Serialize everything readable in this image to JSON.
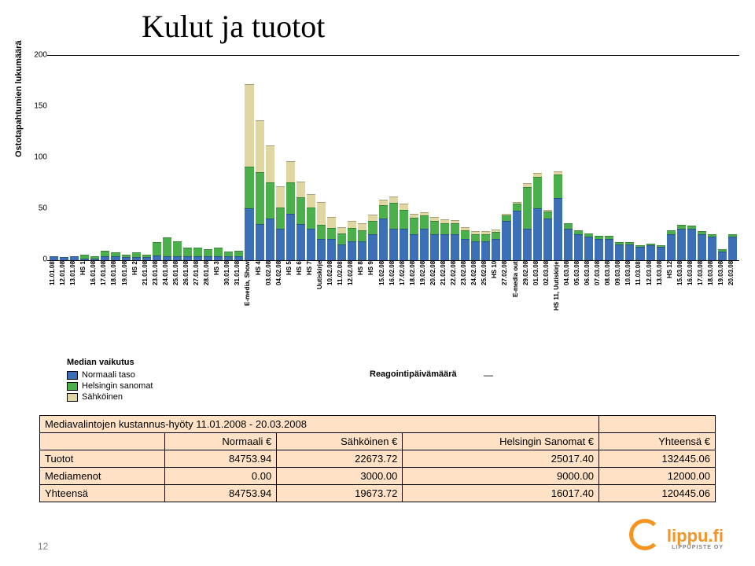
{
  "title": "Kulut ja tuotot",
  "y_axis": {
    "label": "Ostotapahtumien lukumäärä",
    "ylim": [
      0,
      200
    ],
    "ticks": [
      0,
      50,
      100,
      150,
      200
    ]
  },
  "colors": {
    "normaali": "#3b6fb6",
    "helsingin": "#4bb04b",
    "sahkoinen": "#e0d6a2",
    "border": "#000000",
    "table_bg": "#ffe2c6",
    "logo": "#f79321"
  },
  "legend": {
    "header": "Median vaikutus",
    "items": [
      {
        "label": "Normaali taso",
        "color": "#3b6fb6"
      },
      {
        "label": "Helsingin sanomat",
        "color": "#4bb04b"
      },
      {
        "label": "Sähköinen",
        "color": "#e0d6a2"
      }
    ],
    "mid_label": "Reagointipäivämäärä",
    "dash": "—"
  },
  "bars": [
    {
      "label": "11.01.08",
      "normaali": 3,
      "helsingin": 0,
      "sahkoinen": 0
    },
    {
      "label": "12.01.08",
      "normaali": 2,
      "helsingin": 0,
      "sahkoinen": 0
    },
    {
      "label": "13.01.08",
      "normaali": 3,
      "helsingin": 0,
      "sahkoinen": 0
    },
    {
      "label": "HS 1",
      "normaali": 1,
      "helsingin": 3,
      "sahkoinen": 0
    },
    {
      "label": "16.01.08",
      "normaali": 1,
      "helsingin": 1,
      "sahkoinen": 0
    },
    {
      "label": "17.01.08",
      "normaali": 3,
      "helsingin": 5,
      "sahkoinen": 0
    },
    {
      "label": "18.01.08",
      "normaali": 3,
      "helsingin": 3,
      "sahkoinen": 0
    },
    {
      "label": "19.01.08",
      "normaali": 2,
      "helsingin": 2,
      "sahkoinen": 0
    },
    {
      "label": "HS 2",
      "normaali": 2,
      "helsingin": 4,
      "sahkoinen": 0
    },
    {
      "label": "21.01.08",
      "normaali": 2,
      "helsingin": 2,
      "sahkoinen": 0
    },
    {
      "label": "23.01.08",
      "normaali": 4,
      "helsingin": 12,
      "sahkoinen": 0
    },
    {
      "label": "24.01.08",
      "normaali": 3,
      "helsingin": 18,
      "sahkoinen": 0
    },
    {
      "label": "25.01.08",
      "normaali": 3,
      "helsingin": 14,
      "sahkoinen": 0
    },
    {
      "label": "26.01.08",
      "normaali": 3,
      "helsingin": 8,
      "sahkoinen": 0
    },
    {
      "label": "27.01.08",
      "normaali": 3,
      "helsingin": 8,
      "sahkoinen": 0
    },
    {
      "label": "28.01.08",
      "normaali": 3,
      "helsingin": 6,
      "sahkoinen": 0
    },
    {
      "label": "HS 3",
      "normaali": 3,
      "helsingin": 8,
      "sahkoinen": 0
    },
    {
      "label": "30.01.08",
      "normaali": 3,
      "helsingin": 4,
      "sahkoinen": 0
    },
    {
      "label": "31.01.08",
      "normaali": 3,
      "helsingin": 5,
      "sahkoinen": 0
    },
    {
      "label": "E-media, Show",
      "normaali": 50,
      "helsingin": 40,
      "sahkoinen": 80
    },
    {
      "label": "HS 4",
      "normaali": 35,
      "helsingin": 50,
      "sahkoinen": 50
    },
    {
      "label": "03.02.08",
      "normaali": 40,
      "helsingin": 35,
      "sahkoinen": 35
    },
    {
      "label": "04.02.08",
      "normaali": 30,
      "helsingin": 20,
      "sahkoinen": 20
    },
    {
      "label": "HS 5",
      "normaali": 45,
      "helsingin": 30,
      "sahkoinen": 20
    },
    {
      "label": "HS 6",
      "normaali": 35,
      "helsingin": 25,
      "sahkoinen": 15
    },
    {
      "label": "HS 7",
      "normaali": 30,
      "helsingin": 20,
      "sahkoinen": 12
    },
    {
      "label": "Uutiskirje",
      "normaali": 20,
      "helsingin": 13,
      "sahkoinen": 22
    },
    {
      "label": "10.02.08",
      "normaali": 20,
      "helsingin": 10,
      "sahkoinen": 10
    },
    {
      "label": "11.02.08",
      "normaali": 15,
      "helsingin": 10,
      "sahkoinen": 5
    },
    {
      "label": "12.02.08",
      "normaali": 18,
      "helsingin": 12,
      "sahkoinen": 6
    },
    {
      "label": "HS 8",
      "normaali": 18,
      "helsingin": 10,
      "sahkoinen": 6
    },
    {
      "label": "HS 9",
      "normaali": 25,
      "helsingin": 12,
      "sahkoinen": 5
    },
    {
      "label": "15.02.08",
      "normaali": 40,
      "helsingin": 12,
      "sahkoinen": 5
    },
    {
      "label": "16.02.08",
      "normaali": 30,
      "helsingin": 25,
      "sahkoinen": 5
    },
    {
      "label": "17.02.08",
      "normaali": 30,
      "helsingin": 18,
      "sahkoinen": 5
    },
    {
      "label": "18.02.08",
      "normaali": 25,
      "helsingin": 15,
      "sahkoinen": 3
    },
    {
      "label": "19.02.08",
      "normaali": 30,
      "helsingin": 12,
      "sahkoinen": 3
    },
    {
      "label": "20.02.08",
      "normaali": 25,
      "helsingin": 12,
      "sahkoinen": 3
    },
    {
      "label": "21.02.08",
      "normaali": 25,
      "helsingin": 10,
      "sahkoinen": 3
    },
    {
      "label": "22.02.08",
      "normaali": 25,
      "helsingin": 10,
      "sahkoinen": 2
    },
    {
      "label": "23.02.08",
      "normaali": 20,
      "helsingin": 8,
      "sahkoinen": 2
    },
    {
      "label": "24.02.08",
      "normaali": 18,
      "helsingin": 6,
      "sahkoinen": 2
    },
    {
      "label": "25.02.08",
      "normaali": 18,
      "helsingin": 6,
      "sahkoinen": 2
    },
    {
      "label": "HS 10",
      "normaali": 20,
      "helsingin": 6,
      "sahkoinen": 2
    },
    {
      "label": "27.02.08",
      "normaali": 38,
      "helsingin": 4,
      "sahkoinen": 1
    },
    {
      "label": "E-media out",
      "normaali": 48,
      "helsingin": 6,
      "sahkoinen": 1
    },
    {
      "label": "29.02.08",
      "normaali": 30,
      "helsingin": 40,
      "sahkoinen": 3
    },
    {
      "label": "01.03.08",
      "normaali": 50,
      "helsingin": 30,
      "sahkoinen": 3
    },
    {
      "label": "02.03.08",
      "normaali": 40,
      "helsingin": 6,
      "sahkoinen": 1
    },
    {
      "label": "HS 11, Uutiskirje",
      "normaali": 60,
      "helsingin": 22,
      "sahkoinen": 3
    },
    {
      "label": "04.03.08",
      "normaali": 30,
      "helsingin": 5,
      "sahkoinen": 0
    },
    {
      "label": "05.03.08",
      "normaali": 25,
      "helsingin": 3,
      "sahkoinen": 0
    },
    {
      "label": "06.03.08",
      "normaali": 22,
      "helsingin": 3,
      "sahkoinen": 0
    },
    {
      "label": "07.03.08",
      "normaali": 20,
      "helsingin": 2,
      "sahkoinen": 0
    },
    {
      "label": "08.03.08",
      "normaali": 20,
      "helsingin": 2,
      "sahkoinen": 0
    },
    {
      "label": "09.03.08",
      "normaali": 15,
      "helsingin": 1,
      "sahkoinen": 0
    },
    {
      "label": "10.03.08",
      "normaali": 15,
      "helsingin": 1,
      "sahkoinen": 0
    },
    {
      "label": "11.03.08",
      "normaali": 12,
      "helsingin": 1,
      "sahkoinen": 0
    },
    {
      "label": "12.03.08",
      "normaali": 14,
      "helsingin": 1,
      "sahkoinen": 0
    },
    {
      "label": "13.03.08",
      "normaali": 12,
      "helsingin": 1,
      "sahkoinen": 0
    },
    {
      "label": "HS 12",
      "normaali": 25,
      "helsingin": 3,
      "sahkoinen": 0
    },
    {
      "label": "15.03.08",
      "normaali": 30,
      "helsingin": 3,
      "sahkoinen": 0
    },
    {
      "label": "16.03.08",
      "normaali": 30,
      "helsingin": 2,
      "sahkoinen": 0
    },
    {
      "label": "17.03.08",
      "normaali": 25,
      "helsingin": 2,
      "sahkoinen": 0
    },
    {
      "label": "18.03.08",
      "normaali": 22,
      "helsingin": 2,
      "sahkoinen": 0
    },
    {
      "label": "19.03.08",
      "normaali": 8,
      "helsingin": 1,
      "sahkoinen": 0
    },
    {
      "label": "20.03.08",
      "normaali": 22,
      "helsingin": 2,
      "sahkoinen": 0
    }
  ],
  "table": {
    "title": "Mediavalintojen kustannus-hyöty 11.01.2008 - 20.03.2008",
    "columns": [
      "Normaali €",
      "Sähköinen €",
      "Helsingin Sanomat €",
      "Yhteensä €"
    ],
    "rows": [
      {
        "label": "Tuotot",
        "cells": [
          "84753.94",
          "22673.72",
          "25017.40",
          "132445.06"
        ]
      },
      {
        "label": "Mediamenot",
        "cells": [
          "0.00",
          "3000.00",
          "9000.00",
          "12000.00"
        ]
      },
      {
        "label": "Yhteensä",
        "cells": [
          "84753.94",
          "19673.72",
          "16017.40",
          "120445.06"
        ]
      }
    ]
  },
  "footer": {
    "page": "12",
    "logo_text": "lippu.fi",
    "logo_sub": "LIPPUPISTE OY"
  }
}
